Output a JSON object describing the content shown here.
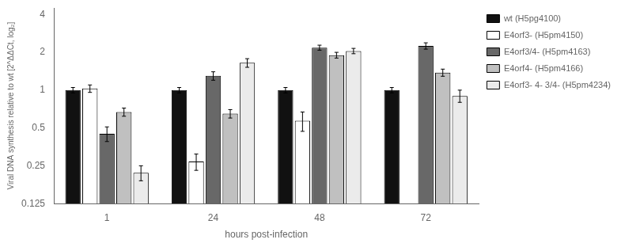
{
  "chart_data": {
    "type": "bar",
    "categories": [
      "1",
      "24",
      "48",
      "72"
    ],
    "series": [
      {
        "name": "wt (H5pg4100)",
        "color": "#111111",
        "values": [
          1.0,
          1.0,
          1.0,
          1.0
        ],
        "errors": [
          0.05,
          0.05,
          0.05,
          0.05
        ]
      },
      {
        "name": "E4orf3- (H5pm4150)",
        "color": "#ffffff",
        "values": [
          1.03,
          0.27,
          0.57,
          null
        ],
        "errors": [
          0.07,
          0.04,
          0.1,
          null
        ]
      },
      {
        "name": "E4orf3/4- (H5pm4163)",
        "color": "#686868",
        "values": [
          0.45,
          1.3,
          2.18,
          2.25
        ],
        "errors": [
          0.06,
          0.1,
          0.1,
          0.13
        ]
      },
      {
        "name": "E4orf4- (H5pm4166)",
        "color": "#c0c0c0",
        "values": [
          0.67,
          0.65,
          1.9,
          1.38
        ],
        "errors": [
          0.05,
          0.05,
          0.1,
          0.09
        ]
      },
      {
        "name": "E4orf3- 4- 3/4- (H5pm4234)",
        "color": "#ebebeb",
        "values": [
          0.22,
          1.65,
          2.05,
          0.9
        ],
        "errors": [
          0.03,
          0.13,
          0.1,
          0.1
        ]
      }
    ],
    "x_label": "hours post-infection",
    "y_label": "Viral DNA synthesis relative to wt [2^ΔΔCt, log₂]",
    "log": "y",
    "ylim": [
      0.125,
      4.5
    ],
    "yticks": [
      0.125,
      0.25,
      0.5,
      1,
      2,
      4
    ],
    "grid": false,
    "legend": "right"
  }
}
